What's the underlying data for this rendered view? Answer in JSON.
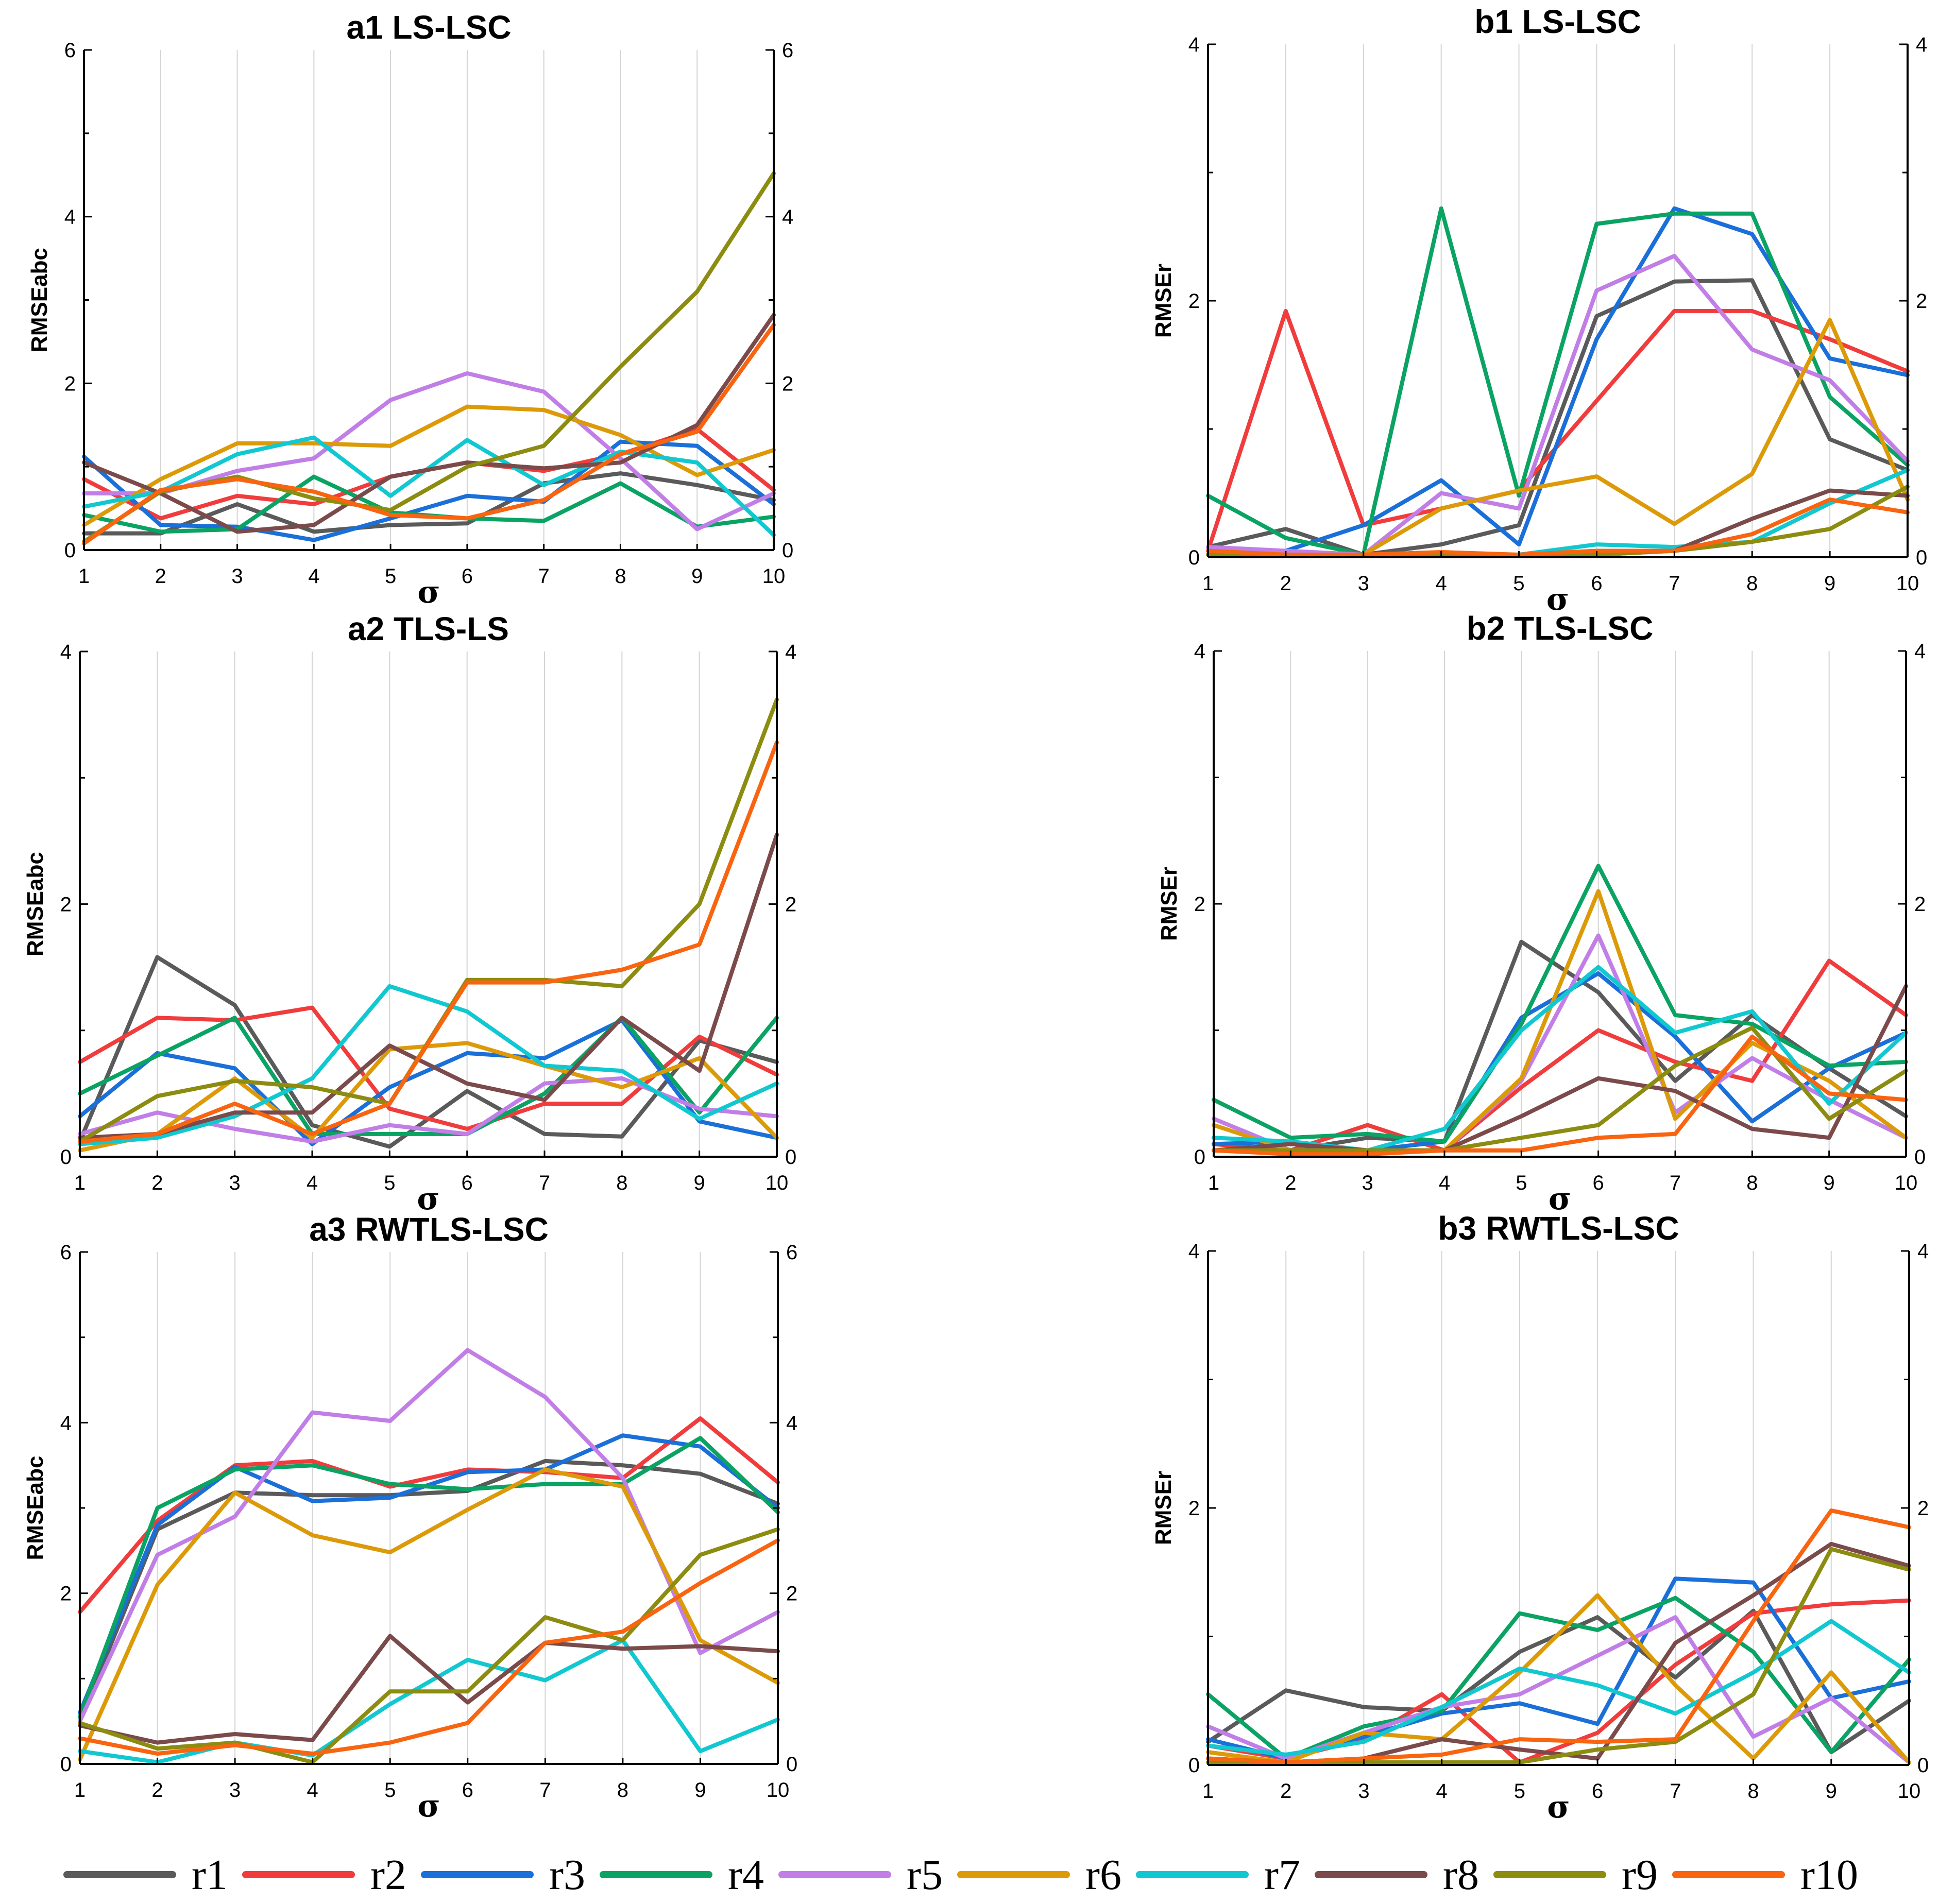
{
  "legend": {
    "items": [
      {
        "label": "r1",
        "color": "#5a5a5a"
      },
      {
        "label": "r2",
        "color": "#f03c3c"
      },
      {
        "label": "r3",
        "color": "#1a6fd8"
      },
      {
        "label": "r4",
        "color": "#0aa363"
      },
      {
        "label": "r5",
        "color": "#c17ee6"
      },
      {
        "label": "r6",
        "color": "#dc9a08"
      },
      {
        "label": "r7",
        "color": "#12c8d0"
      },
      {
        "label": "r8",
        "color": "#7b4a4a"
      },
      {
        "label": "r9",
        "color": "#8c8c10"
      },
      {
        "label": "r10",
        "color": "#f86410"
      }
    ]
  },
  "chart_data": [
    {
      "type": "line",
      "title": "a1 LS-LSC",
      "xlabel": "σ",
      "ylabel": "RMSEabc",
      "xlim": [
        1,
        10
      ],
      "ylim": [
        0,
        6
      ],
      "yticks": [
        0,
        2,
        4,
        6
      ],
      "x": [
        1,
        2,
        3,
        4,
        5,
        6,
        7,
        8,
        9,
        10
      ],
      "series": [
        {
          "name": "r1",
          "values": [
            0.2,
            0.2,
            0.55,
            0.22,
            0.3,
            0.32,
            0.8,
            0.92,
            0.78,
            0.6
          ]
        },
        {
          "name": "r2",
          "values": [
            0.85,
            0.38,
            0.65,
            0.55,
            0.88,
            1.05,
            0.95,
            1.15,
            1.45,
            0.72
          ]
        },
        {
          "name": "r3",
          "values": [
            1.12,
            0.3,
            0.28,
            0.12,
            0.38,
            0.65,
            0.58,
            1.3,
            1.25,
            0.55
          ]
        },
        {
          "name": "r4",
          "values": [
            0.42,
            0.22,
            0.25,
            0.88,
            0.45,
            0.38,
            0.35,
            0.8,
            0.28,
            0.4
          ]
        },
        {
          "name": "r5",
          "values": [
            0.68,
            0.68,
            0.95,
            1.1,
            1.8,
            2.12,
            1.9,
            1.1,
            0.25,
            0.68
          ]
        },
        {
          "name": "r6",
          "values": [
            0.3,
            0.85,
            1.28,
            1.28,
            1.25,
            1.72,
            1.68,
            1.38,
            0.9,
            1.2
          ]
        },
        {
          "name": "r7",
          "values": [
            0.52,
            0.7,
            1.15,
            1.35,
            0.65,
            1.32,
            0.78,
            1.18,
            1.05,
            0.18
          ]
        },
        {
          "name": "r8",
          "values": [
            1.05,
            0.68,
            0.22,
            0.3,
            0.88,
            1.05,
            0.98,
            1.05,
            1.5,
            2.82
          ]
        },
        {
          "name": "r9",
          "values": [
            0.1,
            0.7,
            0.88,
            0.62,
            0.48,
            1.0,
            1.25,
            2.2,
            3.1,
            4.52
          ]
        },
        {
          "name": "r10",
          "values": [
            0.08,
            0.72,
            0.85,
            0.7,
            0.42,
            0.38,
            0.6,
            1.15,
            1.42,
            2.7
          ]
        }
      ]
    },
    {
      "type": "line",
      "title": "b1 LS-LSC",
      "xlabel": "σ",
      "ylabel": "RMSEr",
      "xlim": [
        1,
        10
      ],
      "ylim": [
        0,
        4
      ],
      "yticks": [
        0,
        2,
        4
      ],
      "x": [
        1,
        2,
        3,
        4,
        5,
        6,
        7,
        8,
        9,
        10
      ],
      "series": [
        {
          "name": "r1",
          "values": [
            0.08,
            0.22,
            0.02,
            0.1,
            0.25,
            1.88,
            2.15,
            2.16,
            0.92,
            0.68
          ]
        },
        {
          "name": "r2",
          "values": [
            0.05,
            1.92,
            0.25,
            0.38,
            0.52,
            1.22,
            1.92,
            1.92,
            1.7,
            1.45
          ]
        },
        {
          "name": "r3",
          "values": [
            0.05,
            0.05,
            0.25,
            0.6,
            0.1,
            1.7,
            2.72,
            2.52,
            1.55,
            1.42
          ]
        },
        {
          "name": "r4",
          "values": [
            0.48,
            0.15,
            0.02,
            2.72,
            0.48,
            2.6,
            2.68,
            2.68,
            1.25,
            0.72
          ]
        },
        {
          "name": "r5",
          "values": [
            0.08,
            0.05,
            0.02,
            0.5,
            0.38,
            2.08,
            2.35,
            1.62,
            1.38,
            0.75
          ]
        },
        {
          "name": "r6",
          "values": [
            0.02,
            0.02,
            0.02,
            0.38,
            0.52,
            0.63,
            0.26,
            0.65,
            1.85,
            0.45
          ]
        },
        {
          "name": "r7",
          "values": [
            0.02,
            0.02,
            0.02,
            0.02,
            0.02,
            0.1,
            0.08,
            0.12,
            0.42,
            0.68
          ]
        },
        {
          "name": "r8",
          "values": [
            0.02,
            0.02,
            0.02,
            0.02,
            0.02,
            0.02,
            0.05,
            0.3,
            0.52,
            0.48
          ]
        },
        {
          "name": "r9",
          "values": [
            0.02,
            0.02,
            0.02,
            0.02,
            0.02,
            0.02,
            0.05,
            0.12,
            0.22,
            0.55
          ]
        },
        {
          "name": "r10",
          "values": [
            0.05,
            0.02,
            0.02,
            0.04,
            0.02,
            0.05,
            0.05,
            0.18,
            0.45,
            0.35
          ]
        }
      ]
    },
    {
      "type": "line",
      "title": "a2 TLS-LS",
      "xlabel": "σ",
      "ylabel": "RMSEabc",
      "xlim": [
        1,
        10
      ],
      "ylim": [
        0,
        4
      ],
      "yticks": [
        0,
        2,
        4
      ],
      "x": [
        1,
        2,
        3,
        4,
        5,
        6,
        7,
        8,
        9,
        10
      ],
      "series": [
        {
          "name": "r1",
          "values": [
            0.12,
            1.58,
            1.2,
            0.25,
            0.08,
            0.52,
            0.18,
            0.16,
            0.92,
            0.75
          ]
        },
        {
          "name": "r2",
          "values": [
            0.75,
            1.1,
            1.08,
            1.18,
            0.38,
            0.22,
            0.42,
            0.42,
            0.95,
            0.65
          ]
        },
        {
          "name": "r3",
          "values": [
            0.32,
            0.82,
            0.7,
            0.1,
            0.55,
            0.82,
            0.78,
            1.08,
            0.28,
            0.15
          ]
        },
        {
          "name": "r4",
          "values": [
            0.5,
            0.8,
            1.1,
            0.18,
            0.18,
            0.18,
            0.5,
            1.1,
            0.35,
            1.1
          ]
        },
        {
          "name": "r5",
          "values": [
            0.18,
            0.35,
            0.22,
            0.12,
            0.25,
            0.18,
            0.58,
            0.62,
            0.38,
            0.32
          ]
        },
        {
          "name": "r6",
          "values": [
            0.05,
            0.18,
            0.62,
            0.15,
            0.85,
            0.9,
            0.72,
            0.55,
            0.78,
            0.15
          ]
        },
        {
          "name": "r7",
          "values": [
            0.1,
            0.15,
            0.32,
            0.62,
            1.35,
            1.15,
            0.72,
            0.68,
            0.3,
            0.58
          ]
        },
        {
          "name": "r8",
          "values": [
            0.15,
            0.18,
            0.35,
            0.35,
            0.88,
            0.58,
            0.45,
            1.1,
            0.68,
            2.55
          ]
        },
        {
          "name": "r9",
          "values": [
            0.12,
            0.48,
            0.6,
            0.55,
            0.42,
            1.4,
            1.4,
            1.35,
            2.0,
            3.62
          ]
        },
        {
          "name": "r10",
          "values": [
            0.12,
            0.18,
            0.42,
            0.18,
            0.42,
            1.38,
            1.38,
            1.48,
            1.68,
            3.28
          ]
        }
      ]
    },
    {
      "type": "line",
      "title": "b2 TLS-LSC",
      "xlabel": "σ",
      "ylabel": "RMSEr",
      "xlim": [
        1,
        10
      ],
      "ylim": [
        0,
        4
      ],
      "yticks": [
        0,
        2,
        4
      ],
      "x": [
        1,
        2,
        3,
        4,
        5,
        6,
        7,
        8,
        9,
        10
      ],
      "series": [
        {
          "name": "r1",
          "values": [
            0.1,
            0.05,
            0.15,
            0.12,
            1.7,
            1.3,
            0.6,
            1.12,
            0.7,
            0.32
          ]
        },
        {
          "name": "r2",
          "values": [
            0.1,
            0.05,
            0.25,
            0.05,
            0.55,
            1.0,
            0.75,
            0.6,
            1.55,
            1.12
          ]
        },
        {
          "name": "r3",
          "values": [
            0.1,
            0.12,
            0.05,
            0.12,
            1.1,
            1.45,
            0.95,
            0.28,
            0.7,
            0.98
          ]
        },
        {
          "name": "r4",
          "values": [
            0.45,
            0.15,
            0.18,
            0.12,
            1.05,
            2.3,
            1.12,
            1.05,
            0.72,
            0.75
          ]
        },
        {
          "name": "r5",
          "values": [
            0.3,
            0.05,
            0.05,
            0.05,
            0.6,
            1.75,
            0.35,
            0.78,
            0.45,
            0.15
          ]
        },
        {
          "name": "r6",
          "values": [
            0.25,
            0.05,
            0.05,
            0.05,
            0.62,
            2.1,
            0.3,
            0.9,
            0.6,
            0.15
          ]
        },
        {
          "name": "r7",
          "values": [
            0.15,
            0.12,
            0.05,
            0.22,
            1.0,
            1.5,
            0.98,
            1.15,
            0.42,
            0.98
          ]
        },
        {
          "name": "r8",
          "values": [
            0.05,
            0.1,
            0.05,
            0.05,
            0.32,
            0.62,
            0.52,
            0.22,
            0.15,
            1.35
          ]
        },
        {
          "name": "r9",
          "values": [
            0.05,
            0.05,
            0.05,
            0.05,
            0.15,
            0.25,
            0.72,
            1.02,
            0.3,
            0.68
          ]
        },
        {
          "name": "r10",
          "values": [
            0.05,
            0.02,
            0.02,
            0.05,
            0.05,
            0.15,
            0.18,
            0.95,
            0.5,
            0.45
          ]
        }
      ]
    },
    {
      "type": "line",
      "title": "a3 RWTLS-LSC",
      "xlabel": "σ",
      "ylabel": "RMSEabc",
      "xlim": [
        1,
        10
      ],
      "ylim": [
        0,
        6
      ],
      "yticks": [
        0,
        2,
        4,
        6
      ],
      "x": [
        1,
        2,
        3,
        4,
        5,
        6,
        7,
        8,
        9,
        10
      ],
      "series": [
        {
          "name": "r1",
          "values": [
            0.5,
            2.75,
            3.18,
            3.15,
            3.15,
            3.2,
            3.55,
            3.5,
            3.4,
            3.05
          ]
        },
        {
          "name": "r2",
          "values": [
            1.78,
            2.85,
            3.5,
            3.55,
            3.25,
            3.45,
            3.42,
            3.35,
            4.05,
            3.3
          ]
        },
        {
          "name": "r3",
          "values": [
            0.6,
            2.8,
            3.48,
            3.08,
            3.12,
            3.42,
            3.45,
            3.85,
            3.72,
            3.0
          ]
        },
        {
          "name": "r4",
          "values": [
            0.55,
            3.0,
            3.45,
            3.5,
            3.28,
            3.22,
            3.28,
            3.28,
            3.82,
            2.95
          ]
        },
        {
          "name": "r5",
          "values": [
            0.5,
            2.45,
            2.9,
            4.12,
            4.02,
            4.85,
            4.3,
            3.35,
            1.3,
            1.78
          ]
        },
        {
          "name": "r6",
          "values": [
            0.05,
            2.1,
            3.18,
            2.68,
            2.48,
            2.98,
            3.45,
            3.25,
            1.45,
            0.95
          ]
        },
        {
          "name": "r7",
          "values": [
            0.15,
            0.02,
            0.25,
            0.1,
            0.7,
            1.22,
            0.98,
            1.45,
            0.15,
            0.52
          ]
        },
        {
          "name": "r8",
          "values": [
            0.45,
            0.25,
            0.35,
            0.28,
            1.5,
            0.72,
            1.42,
            1.35,
            1.38,
            1.32
          ]
        },
        {
          "name": "r9",
          "values": [
            0.48,
            0.18,
            0.25,
            0.02,
            0.85,
            0.85,
            1.72,
            1.45,
            2.45,
            2.75
          ]
        },
        {
          "name": "r10",
          "values": [
            0.3,
            0.12,
            0.22,
            0.12,
            0.25,
            0.48,
            1.42,
            1.55,
            2.12,
            2.62
          ]
        }
      ]
    },
    {
      "type": "line",
      "title": "b3 RWTLS-LSC",
      "xlabel": "σ",
      "ylabel": "RMSEr",
      "xlim": [
        1,
        10
      ],
      "ylim": [
        0,
        4
      ],
      "yticks": [
        0,
        2,
        4
      ],
      "x": [
        1,
        2,
        3,
        4,
        5,
        6,
        7,
        8,
        9,
        10
      ],
      "series": [
        {
          "name": "r1",
          "values": [
            0.18,
            0.58,
            0.45,
            0.42,
            0.88,
            1.15,
            0.68,
            1.2,
            0.1,
            0.5
          ]
        },
        {
          "name": "r2",
          "values": [
            0.15,
            0.05,
            0.2,
            0.55,
            0.02,
            0.25,
            0.78,
            1.18,
            1.25,
            1.28
          ]
        },
        {
          "name": "r3",
          "values": [
            0.2,
            0.05,
            0.22,
            0.4,
            0.48,
            0.32,
            1.45,
            1.42,
            0.52,
            0.65
          ]
        },
        {
          "name": "r4",
          "values": [
            0.55,
            0.05,
            0.3,
            0.42,
            1.18,
            1.05,
            1.3,
            0.88,
            0.1,
            0.82
          ]
        },
        {
          "name": "r5",
          "values": [
            0.3,
            0.05,
            0.25,
            0.45,
            0.55,
            0.85,
            1.15,
            0.22,
            0.52,
            0.02
          ]
        },
        {
          "name": "r6",
          "values": [
            0.1,
            0.02,
            0.25,
            0.2,
            0.72,
            1.32,
            0.62,
            0.05,
            0.72,
            0.02
          ]
        },
        {
          "name": "r7",
          "values": [
            0.15,
            0.08,
            0.18,
            0.45,
            0.75,
            0.62,
            0.4,
            0.72,
            1.12,
            0.72
          ]
        },
        {
          "name": "r8",
          "values": [
            0.05,
            0.02,
            0.05,
            0.2,
            0.12,
            0.05,
            0.95,
            1.32,
            1.72,
            1.55
          ]
        },
        {
          "name": "r9",
          "values": [
            0.02,
            0.02,
            0.02,
            0.02,
            0.02,
            0.12,
            0.18,
            0.55,
            1.68,
            1.52
          ]
        },
        {
          "name": "r10",
          "values": [
            0.05,
            0.02,
            0.05,
            0.08,
            0.2,
            0.18,
            0.2,
            1.12,
            1.98,
            1.85
          ]
        }
      ]
    }
  ]
}
